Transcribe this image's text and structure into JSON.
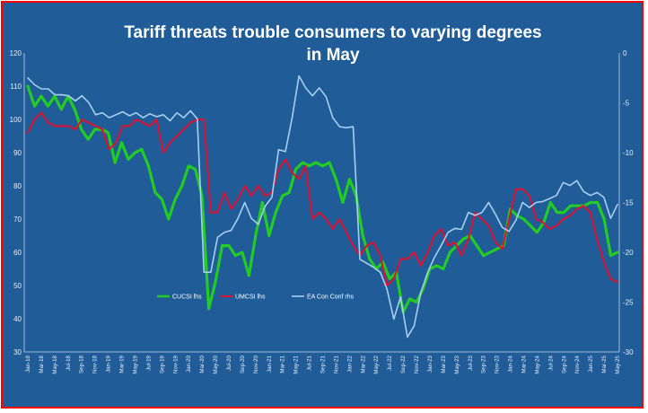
{
  "chart_data": {
    "type": "line",
    "title_line1": "Tariff threats trouble consumers to varying degrees",
    "title_line2": "in May",
    "y_left": {
      "min": 30,
      "max": 120,
      "ticks": [
        30,
        40,
        50,
        60,
        70,
        80,
        90,
        100,
        110,
        120
      ]
    },
    "y_right": {
      "min": -30,
      "max": 0,
      "ticks": [
        -30,
        -25,
        -20,
        -15,
        -10,
        -5,
        0
      ]
    },
    "grid": false,
    "legend_position": "lower-left-inside",
    "x_labels": [
      "Jan-18",
      "Mar-18",
      "May-18",
      "Jul-18",
      "Sep-18",
      "Nov-18",
      "Jan-19",
      "Mar-19",
      "May-19",
      "Jul-19",
      "Sep-19",
      "Nov-19",
      "Jan-20",
      "Mar-20",
      "May-20",
      "Jul-20",
      "Sep-20",
      "Nov-20",
      "Jan-21",
      "Mar-21",
      "May-21",
      "Jul-21",
      "Sep-21",
      "Nov-21",
      "Jan-22",
      "Mar-22",
      "May-22",
      "Jul-22",
      "Sep-22",
      "Nov-22",
      "Jan-23",
      "Mar-23",
      "May-23",
      "Jul-23",
      "Sep-23",
      "Nov-23",
      "Jan-24",
      "Mar-24",
      "May-24",
      "Jul-24",
      "Sep-24",
      "Nov-24",
      "Jan-25",
      "Mar-25",
      "May-25"
    ],
    "series": [
      {
        "name": "CUCSI lhs",
        "color": "#22cc22",
        "axis": "left",
        "width": 3.2,
        "values": [
          110,
          104,
          107,
          104,
          107,
          103,
          107,
          103,
          97,
          94,
          97,
          97,
          96,
          87,
          93,
          88,
          90,
          91,
          86,
          78,
          76,
          70,
          76,
          80,
          86,
          85,
          77,
          43,
          51,
          62,
          62,
          59,
          60,
          53,
          65,
          75,
          65,
          72,
          77,
          78,
          85,
          87,
          86,
          87,
          86,
          87,
          82,
          75,
          82,
          77,
          65,
          58,
          55,
          57,
          52,
          54,
          42,
          46,
          45,
          49,
          55,
          56,
          55,
          60,
          62,
          64,
          65,
          62,
          59,
          60,
          61,
          62,
          73,
          71,
          70,
          68,
          66,
          69,
          75,
          72,
          72,
          74,
          74,
          74,
          75,
          75,
          70,
          59,
          60
        ]
      },
      {
        "name": "UMCSI lhs",
        "color": "#e01030",
        "axis": "left",
        "width": 2,
        "values": [
          96,
          100,
          102,
          99,
          98,
          98,
          98,
          97,
          100,
          99,
          98,
          97,
          91,
          93,
          98,
          98,
          100,
          99,
          98,
          100,
          90,
          93,
          95,
          97,
          99,
          100,
          100,
          72,
          72,
          78,
          73,
          76,
          80,
          77,
          80,
          77,
          78,
          85,
          88,
          84,
          82,
          86,
          70,
          72,
          70,
          67,
          70,
          66,
          62,
          59,
          62,
          63,
          59,
          50,
          52,
          58,
          58,
          60,
          56,
          60,
          65,
          67,
          62,
          63,
          59,
          64,
          72,
          70,
          68,
          63,
          61,
          70,
          79,
          79,
          77,
          70,
          69,
          67,
          68,
          70,
          71,
          73,
          74,
          72,
          64,
          57,
          52,
          51
        ]
      },
      {
        "name": "EA Con Conf rhs",
        "color": "#a8cff0",
        "axis": "right",
        "width": 1.6,
        "values": [
          -2.5,
          -3.2,
          -3.6,
          -3.6,
          -4.2,
          -4.2,
          -4.3,
          -4.8,
          -4.3,
          -5.0,
          -6.2,
          -6.0,
          -6.5,
          -6.2,
          -5.9,
          -6.3,
          -6.0,
          -6.5,
          -6.1,
          -6.4,
          -6.2,
          -6.8,
          -6.0,
          -6.5,
          -5.8,
          -6.6,
          -22.0,
          -22.0,
          -18.5,
          -18.0,
          -17.8,
          -16.6,
          -15.0,
          -16.6,
          -17.2,
          -15.4,
          -14.5,
          -9.7,
          -9.9,
          -6.5,
          -2.3,
          -3.5,
          -4.3,
          -3.5,
          -4.4,
          -6.5,
          -7.4,
          -7.5,
          -7.4,
          -20.7,
          -21.1,
          -21.5,
          -22.0,
          -23.7,
          -26.7,
          -24.5,
          -28.5,
          -27.4,
          -24.0,
          -22.0,
          -20.5,
          -19.3,
          -18.0,
          -17.6,
          -17.7,
          -16.0,
          -16.3,
          -16.0,
          -15.0,
          -16.2,
          -17.5,
          -17.9,
          -16.8,
          -15.0,
          -15.5,
          -15.0,
          -14.9,
          -14.6,
          -14.3,
          -13.0,
          -13.3,
          -12.8,
          -13.9,
          -14.3,
          -14.0,
          -14.5,
          -16.6,
          -15.2
        ]
      }
    ]
  }
}
